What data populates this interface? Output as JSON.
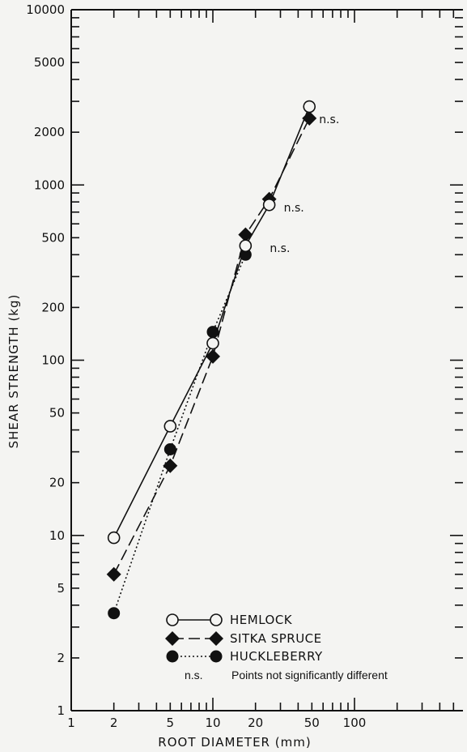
{
  "chart_data": {
    "type": "scatter",
    "xlabel": "ROOT DIAMETER (mm)",
    "ylabel": "SHEAR STRENGTH (kg)",
    "xscale": "log",
    "yscale": "log",
    "xlim": [
      1,
      200
    ],
    "ylim": [
      1,
      10000
    ],
    "x_tick_labels": [
      "1",
      "2",
      "5",
      "10",
      "20",
      "50",
      "100"
    ],
    "x_ticks": [
      1,
      2,
      5,
      10,
      20,
      50,
      100
    ],
    "y_tick_labels": [
      "1",
      "2",
      "5",
      "10",
      "20",
      "50",
      "100",
      "200",
      "500",
      "1000",
      "2000",
      "5000",
      "10000"
    ],
    "y_ticks": [
      1,
      2,
      5,
      10,
      20,
      50,
      100,
      200,
      500,
      1000,
      2000,
      5000,
      10000
    ],
    "series": [
      {
        "name": "HEMLOCK",
        "marker": "open-circle",
        "line": "solid",
        "x": [
          2,
          5,
          10,
          17,
          25,
          48
        ],
        "y": [
          9.7,
          42,
          125,
          450,
          770,
          2800
        ]
      },
      {
        "name": "SITKA SPRUCE",
        "marker": "filled-diamond",
        "line": "dashed",
        "x": [
          2,
          5,
          10,
          17,
          25,
          48
        ],
        "y": [
          6,
          25,
          105,
          520,
          830,
          2400
        ]
      },
      {
        "name": "HUCKLEBERRY",
        "marker": "filled-circle",
        "line": "dotted",
        "x": [
          2,
          5,
          10,
          17
        ],
        "y": [
          3.6,
          31,
          145,
          400
        ]
      }
    ],
    "annotations": [
      {
        "text": "n.s.",
        "x": 48,
        "y": 2400
      },
      {
        "text": "n.s.",
        "x": 25,
        "y": 770
      },
      {
        "text": "n.s.",
        "x": 17,
        "y": 450
      }
    ],
    "legend": {
      "position": "bottom-right",
      "note_symbol": "n.s.",
      "note_text": "Points not significantly different"
    },
    "grid": false
  }
}
